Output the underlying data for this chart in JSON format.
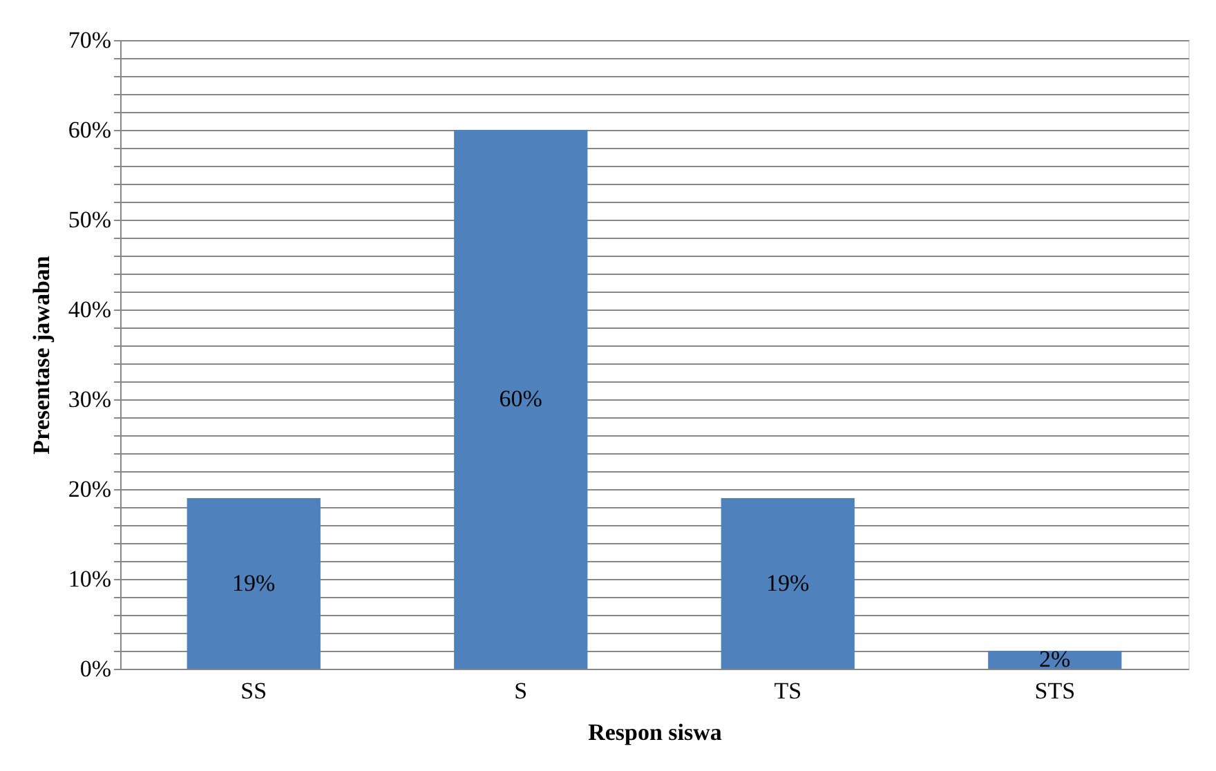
{
  "chart_data": {
    "type": "bar",
    "xlabel": "Respon siswa",
    "ylabel": "Presentase jawaban",
    "categories": [
      "SS",
      "S",
      "TS",
      "STS"
    ],
    "values": [
      19,
      60,
      19,
      2
    ],
    "value_labels": [
      "19%",
      "60%",
      "19%",
      "2%"
    ],
    "color": "#4f81bd",
    "ylim": [
      0,
      70
    ],
    "yticks": [
      {
        "value": 0,
        "label": "0%"
      },
      {
        "value": 2,
        "label": null
      },
      {
        "value": 4,
        "label": null
      },
      {
        "value": 6,
        "label": null
      },
      {
        "value": 8,
        "label": null
      },
      {
        "value": 10,
        "label": "10%"
      },
      {
        "value": 12,
        "label": null
      },
      {
        "value": 14,
        "label": null
      },
      {
        "value": 16,
        "label": null
      },
      {
        "value": 18,
        "label": null
      },
      {
        "value": 20,
        "label": "20%"
      },
      {
        "value": 22,
        "label": null
      },
      {
        "value": 24,
        "label": null
      },
      {
        "value": 26,
        "label": null
      },
      {
        "value": 28,
        "label": null
      },
      {
        "value": 30,
        "label": "30%"
      },
      {
        "value": 32,
        "label": null
      },
      {
        "value": 34,
        "label": null
      },
      {
        "value": 36,
        "label": null
      },
      {
        "value": 38,
        "label": null
      },
      {
        "value": 40,
        "label": "40%"
      },
      {
        "value": 42,
        "label": null
      },
      {
        "value": 44,
        "label": null
      },
      {
        "value": 46,
        "label": null
      },
      {
        "value": 48,
        "label": null
      },
      {
        "value": 50,
        "label": "50%"
      },
      {
        "value": 52,
        "label": null
      },
      {
        "value": 54,
        "label": null
      },
      {
        "value": 56,
        "label": null
      },
      {
        "value": 58,
        "label": null
      },
      {
        "value": 60,
        "label": "60%"
      },
      {
        "value": 62,
        "label": null
      },
      {
        "value": 64,
        "label": null
      },
      {
        "value": 66,
        "label": null
      },
      {
        "value": 68,
        "label": null
      },
      {
        "value": 70,
        "label": "70%"
      }
    ],
    "grid": true
  }
}
